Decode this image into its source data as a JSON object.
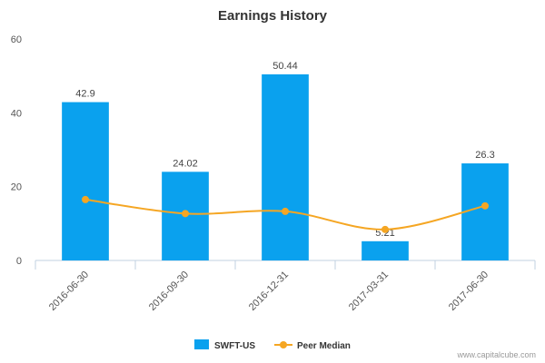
{
  "chart_data": {
    "type": "bar",
    "title": "Earnings History",
    "categories": [
      "2016-06-30",
      "2016-09-30",
      "2016-12-31",
      "2017-03-31",
      "2017-06-30"
    ],
    "series": [
      {
        "name": "SWFT-US",
        "type": "bar",
        "color": "#0AA1EE",
        "values": [
          42.9,
          24.02,
          50.44,
          5.21,
          26.3
        ],
        "labels": [
          "42.9",
          "24.02",
          "50.44",
          "5.21",
          "26.3"
        ]
      },
      {
        "name": "Peer Median",
        "type": "line",
        "color": "#F5A623",
        "values": [
          16.5,
          12.7,
          13.3,
          8.4,
          14.8
        ]
      }
    ],
    "ylim": [
      0,
      60
    ],
    "yticks": [
      0,
      20,
      40,
      60
    ],
    "grid": false,
    "legend": "bottom-center"
  },
  "footer": {
    "credit": "www.capitalcube.com"
  }
}
